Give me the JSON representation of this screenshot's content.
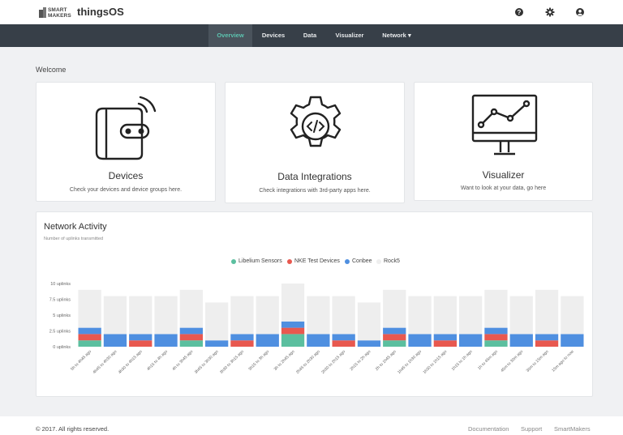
{
  "brand": {
    "logo_line1": "SMART",
    "logo_line2": "MAKERS",
    "name": "thingsOS"
  },
  "header_icons": [
    "help-icon",
    "gear-icon",
    "user-icon"
  ],
  "nav": {
    "items": [
      "Overview",
      "Devices",
      "Data",
      "Visualizer",
      "Network ▾"
    ],
    "active": "Overview"
  },
  "welcome": "Welcome",
  "cards": [
    {
      "title": "Devices",
      "subtitle": "Check your devices and device groups here.",
      "icon": "device-icon"
    },
    {
      "title": "Data Integrations",
      "subtitle": "Check integrations with 3rd-party apps here.",
      "icon": "integration-gear-icon"
    },
    {
      "title": "Visualizer",
      "subtitle": "Want to look at your data, go here",
      "icon": "monitor-chart-icon"
    }
  ],
  "network_activity": {
    "title": "Network Activity",
    "subtitle": "Number of uplinks transmitted"
  },
  "colors": {
    "accent": "#5cc4b0",
    "navbar": "#373f48",
    "series": [
      "#5bbf9f",
      "#e8584f",
      "#4f8fe0",
      "#eeeeee"
    ]
  },
  "chart_data": {
    "type": "bar",
    "stacked": true,
    "y_tick_labels": [
      "0 uplinks",
      "2.5 uplinks",
      "5 uplinks",
      "7.5 uplinks",
      "10 uplinks"
    ],
    "y_ticks": [
      0,
      2.5,
      5,
      7.5,
      10
    ],
    "ylim": [
      0,
      10
    ],
    "categories": [
      "5h to 4h45 ago",
      "4h45 to 4h30 ago",
      "4h30 to 4h15 ago",
      "4h15 to 4h ago",
      "4h to 3h45 ago",
      "3h45 to 3h30 ago",
      "3h30 to 3h15 ago",
      "3h15 to 3h ago",
      "3h to 2h45 ago",
      "2h45 to 2h30 ago",
      "2h30 to 2h15 ago",
      "2h15 to 2h ago",
      "2h to 1h45 ago",
      "1h45 to 1h30 ago",
      "1h30 to 1h15 ago",
      "1h15 to 1h ago",
      "1h to 45m ago",
      "45m to 30m ago",
      "30m to 15m ago",
      "15m ago to now"
    ],
    "series": [
      {
        "name": "Libelium Sensors",
        "values": [
          1,
          0,
          0,
          0,
          1,
          0,
          0,
          0,
          2,
          0,
          0,
          0,
          1,
          0,
          0,
          0,
          1,
          0,
          0,
          0
        ]
      },
      {
        "name": "NKE Test Devices",
        "values": [
          1,
          0,
          1,
          0,
          1,
          0,
          1,
          0,
          1,
          0,
          1,
          0,
          1,
          0,
          1,
          0,
          1,
          0,
          1,
          0
        ]
      },
      {
        "name": "Conbee",
        "values": [
          1,
          2,
          1,
          2,
          1,
          1,
          1,
          2,
          1,
          2,
          1,
          1,
          1,
          2,
          1,
          2,
          1,
          2,
          1,
          2
        ]
      },
      {
        "name": "Rock5",
        "values": [
          6,
          6,
          6,
          6,
          6,
          6,
          6,
          6,
          6,
          6,
          6,
          6,
          6,
          6,
          6,
          6,
          6,
          6,
          7,
          6
        ]
      }
    ],
    "legend_position": "top-center"
  },
  "footer": {
    "copyright": "© 2017. All rights reserved.",
    "links": [
      "Documentation",
      "Support",
      "SmartMakers"
    ]
  }
}
